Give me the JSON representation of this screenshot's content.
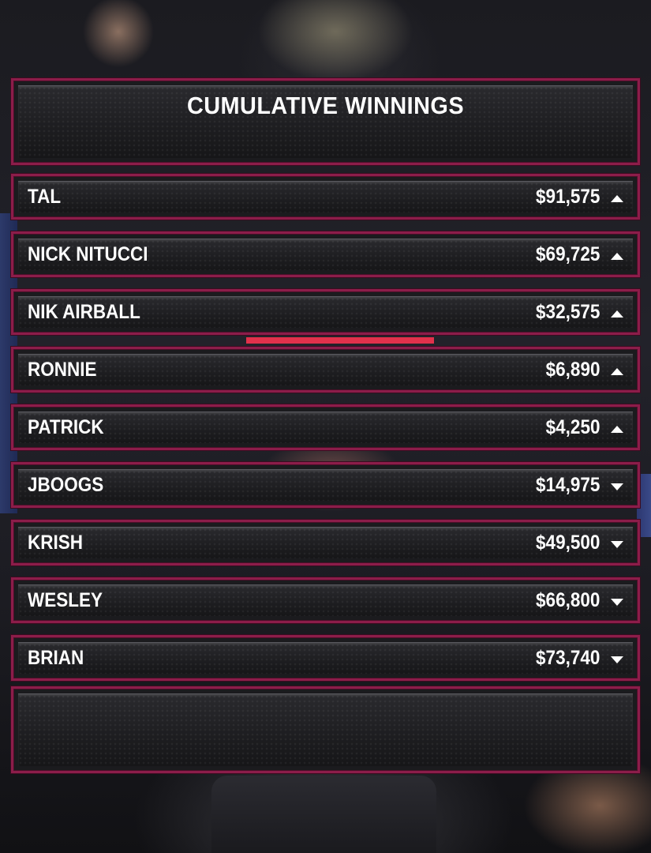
{
  "leaderboard": {
    "title": "CUMULATIVE WINNINGS",
    "rows": [
      {
        "name": "TAL",
        "amount": "$91,575",
        "trend": "up"
      },
      {
        "name": "NICK NITUCCI",
        "amount": "$69,725",
        "trend": "up"
      },
      {
        "name": "NIK AIRBALL",
        "amount": "$32,575",
        "trend": "up"
      },
      {
        "name": "RONNIE",
        "amount": "$6,890",
        "trend": "up"
      },
      {
        "name": "PATRICK",
        "amount": "$4,250",
        "trend": "up"
      },
      {
        "name": "JBOOGS",
        "amount": "$14,975",
        "trend": "down"
      },
      {
        "name": "KRISH",
        "amount": "$49,500",
        "trend": "down"
      },
      {
        "name": "WESLEY",
        "amount": "$66,800",
        "trend": "down"
      },
      {
        "name": "BRIAN",
        "amount": "$73,740",
        "trend": "down"
      }
    ]
  },
  "colors": {
    "frame": "#8c1d4a",
    "text": "#ffffff"
  },
  "icons": {
    "up": "triangle-up-icon",
    "down": "triangle-down-icon"
  }
}
